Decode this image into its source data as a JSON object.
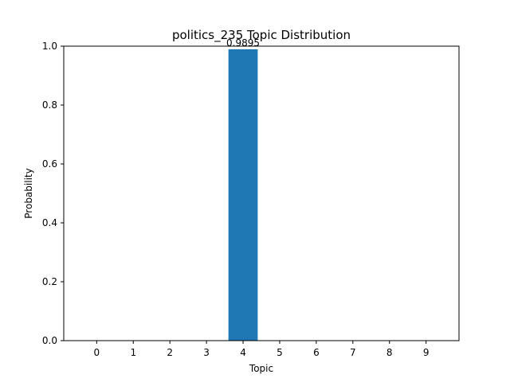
{
  "chart_data": {
    "type": "bar",
    "title": "politics_235 Topic Distribution",
    "xlabel": "Topic",
    "ylabel": "Probability",
    "categories": [
      "0",
      "1",
      "2",
      "3",
      "4",
      "5",
      "6",
      "7",
      "8",
      "9"
    ],
    "values": [
      0,
      0,
      0,
      0,
      0.9895,
      0,
      0,
      0,
      0,
      0
    ],
    "data_labels": [
      "",
      "",
      "",
      "",
      "0.9895",
      "",
      "",
      "",
      "",
      ""
    ],
    "ylim": [
      0,
      1.0
    ],
    "yticks": [
      "0.0",
      "0.2",
      "0.4",
      "0.6",
      "0.8",
      "1.0"
    ],
    "grid": false,
    "bar_color": "#1f77b4"
  }
}
